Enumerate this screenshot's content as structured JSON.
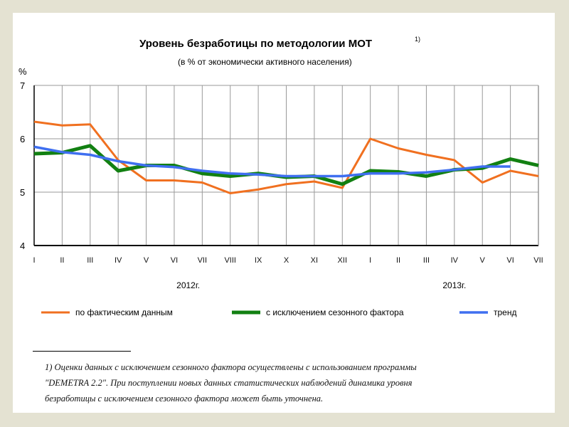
{
  "chart_data": {
    "type": "line",
    "title": "Уровень безработицы по методологии МОТ",
    "title_sup": "1)",
    "subtitle": "(в % от экономически активного населения)",
    "ylabel": "%",
    "ylim": [
      4,
      7
    ],
    "yticks": [
      "4",
      "5",
      "6",
      "7"
    ],
    "categories": [
      "I",
      "II",
      "III",
      "IV",
      "V",
      "VI",
      "VII",
      "VIII",
      "IX",
      "X",
      "XI",
      "XII",
      "I",
      "II",
      "III",
      "IV",
      "V",
      "VI",
      "VII"
    ],
    "year_labels": [
      "2012г.",
      "2013г."
    ],
    "grid": true,
    "legend_position": "bottom",
    "series": [
      {
        "name": "по фактическим данным",
        "color": "#f07020",
        "values": [
          6.32,
          6.25,
          6.27,
          5.6,
          5.22,
          5.22,
          5.18,
          4.98,
          5.05,
          5.15,
          5.2,
          5.08,
          6.0,
          5.82,
          5.7,
          5.6,
          5.18,
          5.4,
          5.3
        ]
      },
      {
        "name": "с исключением сезонного фактора",
        "color": "#128012",
        "values": [
          5.72,
          5.74,
          5.87,
          5.4,
          5.5,
          5.5,
          5.35,
          5.3,
          5.35,
          5.28,
          5.3,
          5.15,
          5.4,
          5.38,
          5.3,
          5.42,
          5.45,
          5.62,
          5.5
        ]
      },
      {
        "name": "тренд",
        "color": "#3f6ff0",
        "values": [
          5.85,
          5.75,
          5.7,
          5.58,
          5.5,
          5.47,
          5.4,
          5.35,
          5.33,
          5.3,
          5.3,
          5.3,
          5.35,
          5.35,
          5.37,
          5.42,
          5.48,
          5.48,
          null
        ]
      }
    ]
  },
  "footnote": {
    "line1": "1) Оценки данных с исключением сезонного фактора осуществлены с использованием программы",
    "line2": "\"DEMETRA 2.2\". При поступлении новых данных статистических наблюдений динамика уровня",
    "line3": "безработицы с исключением сезонного фактора может быть уточнена."
  }
}
